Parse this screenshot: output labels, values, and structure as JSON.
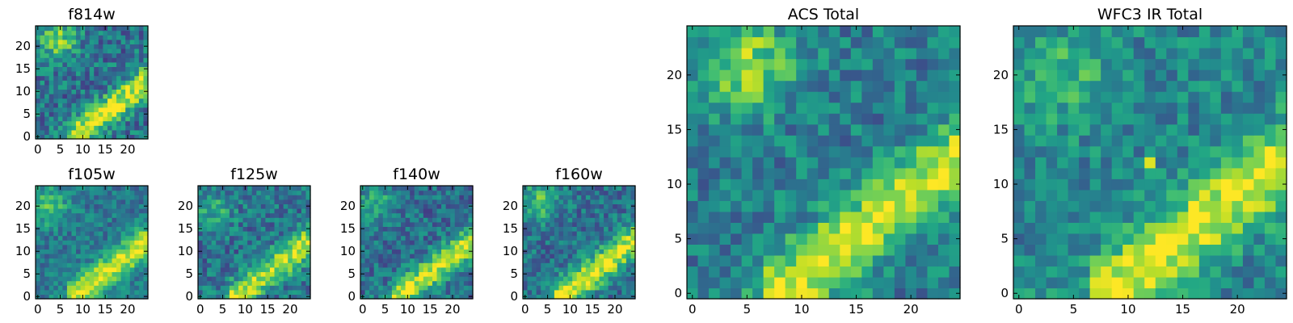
{
  "chart_data": [
    {
      "type": "heatmap",
      "title": "f814w",
      "size": 25,
      "xlim": [
        0,
        24
      ],
      "ylim": [
        0,
        24
      ],
      "xticks": [
        "0",
        "5",
        "10",
        "15",
        "20"
      ],
      "yticks": [
        "0",
        "5",
        "10",
        "15",
        "20"
      ],
      "colormap": "viridis",
      "structure": {
        "diag_strength": 1.0,
        "blob": [
          4.5,
          21.5,
          0.75
        ],
        "noise": 0.35,
        "base": 0.38,
        "spots": []
      }
    },
    {
      "type": "heatmap",
      "title": "f105w",
      "size": 25,
      "xlim": [
        0,
        24
      ],
      "ylim": [
        0,
        24
      ],
      "xticks": [
        "0",
        "5",
        "10",
        "15",
        "20"
      ],
      "yticks": [
        "0",
        "5",
        "10",
        "15",
        "20"
      ],
      "colormap": "viridis",
      "structure": {
        "diag_strength": 1.0,
        "blob": [
          2.5,
          20.0,
          0.55
        ],
        "noise": 0.25,
        "base": 0.4,
        "spots": []
      }
    },
    {
      "type": "heatmap",
      "title": "f125w",
      "size": 25,
      "xlim": [
        0,
        24
      ],
      "ylim": [
        0,
        24
      ],
      "xticks": [
        "0",
        "5",
        "10",
        "15",
        "20"
      ],
      "yticks": [
        "0",
        "5",
        "10",
        "15",
        "20"
      ],
      "colormap": "viridis",
      "structure": {
        "diag_strength": 0.95,
        "blob": [
          3.0,
          19.0,
          0.45
        ],
        "noise": 0.32,
        "base": 0.38,
        "spots": []
      }
    },
    {
      "type": "heatmap",
      "title": "f140w",
      "size": 25,
      "xlim": [
        0,
        24
      ],
      "ylim": [
        0,
        24
      ],
      "xticks": [
        "0",
        "5",
        "10",
        "15",
        "20"
      ],
      "yticks": [
        "0",
        "5",
        "10",
        "15",
        "20"
      ],
      "colormap": "viridis",
      "structure": {
        "diag_strength": 1.0,
        "blob": [
          3.0,
          21.0,
          0.45
        ],
        "noise": 0.3,
        "base": 0.36,
        "spots": []
      }
    },
    {
      "type": "heatmap",
      "title": "f160w",
      "size": 25,
      "xlim": [
        0,
        24
      ],
      "ylim": [
        0,
        24
      ],
      "xticks": [
        "0",
        "5",
        "10",
        "15",
        "20"
      ],
      "yticks": [
        "0",
        "5",
        "10",
        "15",
        "20"
      ],
      "colormap": "viridis",
      "structure": {
        "diag_strength": 1.05,
        "blob": [
          3.0,
          21.0,
          0.55
        ],
        "noise": 0.3,
        "base": 0.38,
        "spots": []
      }
    },
    {
      "type": "heatmap",
      "title": "ACS Total",
      "size": 25,
      "xlim": [
        0,
        24
      ],
      "ylim": [
        0,
        24
      ],
      "xticks": [
        "0",
        "5",
        "10",
        "15",
        "20"
      ],
      "yticks": [
        "0",
        "5",
        "10",
        "15",
        "20"
      ],
      "colormap": "viridis",
      "structure": {
        "diag_strength": 1.0,
        "blob": [
          5.0,
          21.0,
          0.75
        ],
        "noise": 0.3,
        "base": 0.42,
        "spots": []
      }
    },
    {
      "type": "heatmap",
      "title": "WFC3 IR Total",
      "size": 25,
      "xlim": [
        0,
        24
      ],
      "ylim": [
        0,
        24
      ],
      "xticks": [
        "0",
        "5",
        "10",
        "15",
        "20"
      ],
      "yticks": [
        "0",
        "5",
        "10",
        "15",
        "20"
      ],
      "colormap": "viridis",
      "structure": {
        "diag_strength": 0.95,
        "blob": [
          4.0,
          20.0,
          0.4
        ],
        "noise": 0.28,
        "base": 0.45,
        "spots": [
          [
            12,
            12,
            0.95
          ]
        ]
      }
    }
  ]
}
